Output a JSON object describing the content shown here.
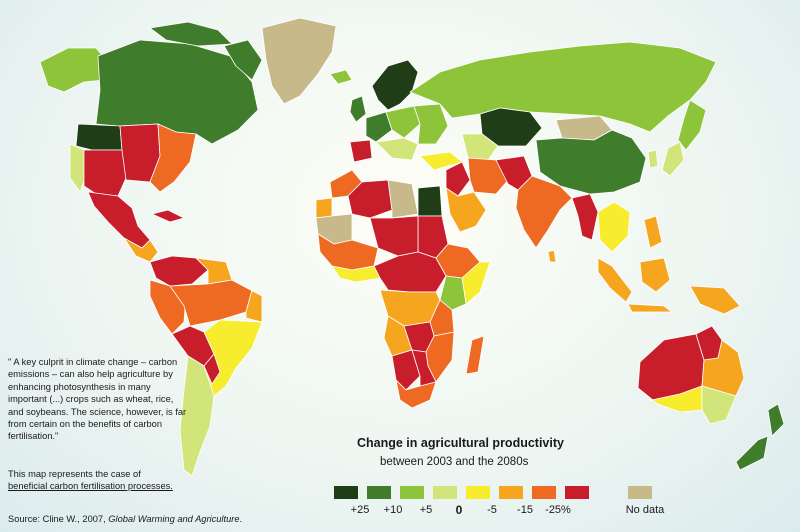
{
  "note": {
    "quote": "\" A key culprit in climate change – carbon emissions – can also help agriculture by enhancing photosynthesis in many important (...) crops such as wheat, rice, and soybeans. The science, however, is far from certain on the benefits of carbon fertilisation.\"",
    "case_line1": "This map represents the case of",
    "case_line2": "beneficial carbon fertilisation processes."
  },
  "source": {
    "prefix": "Source: Cline W., 2007, ",
    "title": "Global Warming and Agriculture",
    "suffix": "."
  },
  "legend": {
    "title": "Change in agricultural productivity",
    "subtitle": "between 2003 and the 2080s",
    "items": [
      {
        "label": "",
        "color": "#1f3d17"
      },
      {
        "label": "+25",
        "color": "#3f7c2c"
      },
      {
        "label": "+10",
        "color": "#8ec43a"
      },
      {
        "label": "+5",
        "color": "#d2e57a"
      },
      {
        "label": "0",
        "color": "#f7ec2e"
      },
      {
        "label": "-5",
        "color": "#f6a61e"
      },
      {
        "label": "-15",
        "color": "#ee6a22"
      },
      {
        "label": "-25%",
        "color": "#c81e2c"
      },
      {
        "label": "No data",
        "color": "#c7b98a"
      }
    ]
  }
}
